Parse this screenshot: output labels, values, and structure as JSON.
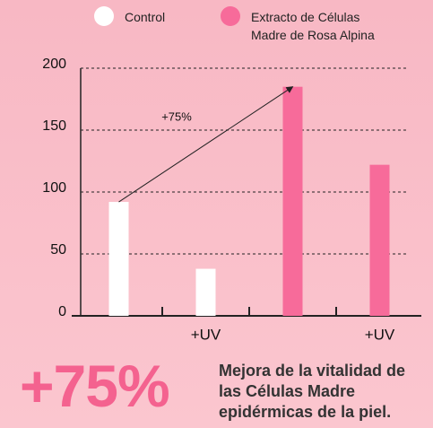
{
  "chart_data": {
    "type": "bar",
    "categories": [
      null,
      "+UV",
      null,
      "+UV"
    ],
    "series": [
      {
        "name": "Control",
        "color": "#ffffff",
        "values": [
          92,
          38,
          null,
          null
        ]
      },
      {
        "name": "Extracto de Células Madre de Rosa Alpina",
        "color": "#f76b9a",
        "values": [
          null,
          null,
          185,
          122
        ]
      }
    ],
    "ylim": [
      0,
      200
    ],
    "yticks": [
      0,
      50,
      100,
      150,
      200
    ],
    "grid": true,
    "annotation": "+75%",
    "highlight": "+75%",
    "caption": [
      "Mejora de la vitalidad de",
      "las Células Madre",
      "epidérmicas de la piel."
    ]
  }
}
